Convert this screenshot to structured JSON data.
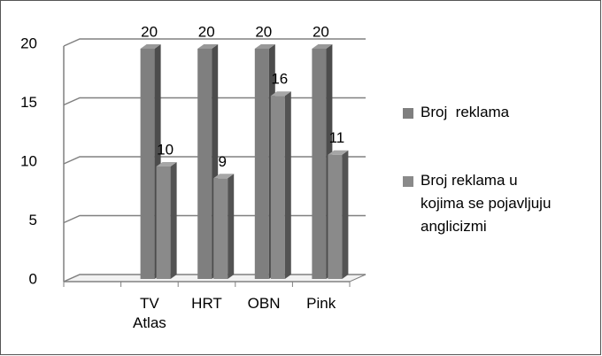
{
  "chart_data": {
    "type": "bar3d",
    "categories": [
      null,
      "TV Atlas",
      "HRT",
      "OBN",
      "Pink"
    ],
    "series": [
      {
        "name": "Broj  reklama",
        "color": "#7f7f7f",
        "values": [
          null,
          20,
          20,
          20,
          20
        ]
      },
      {
        "name": "Broj reklama u kojima se pojavljuju anglicizmi",
        "color": "#8a8a8a",
        "values": [
          null,
          10,
          9,
          16,
          11
        ]
      }
    ],
    "ylim": [
      0,
      20
    ],
    "yticks": [
      0,
      5,
      10,
      15,
      20
    ],
    "grid": true,
    "legend": "right"
  }
}
